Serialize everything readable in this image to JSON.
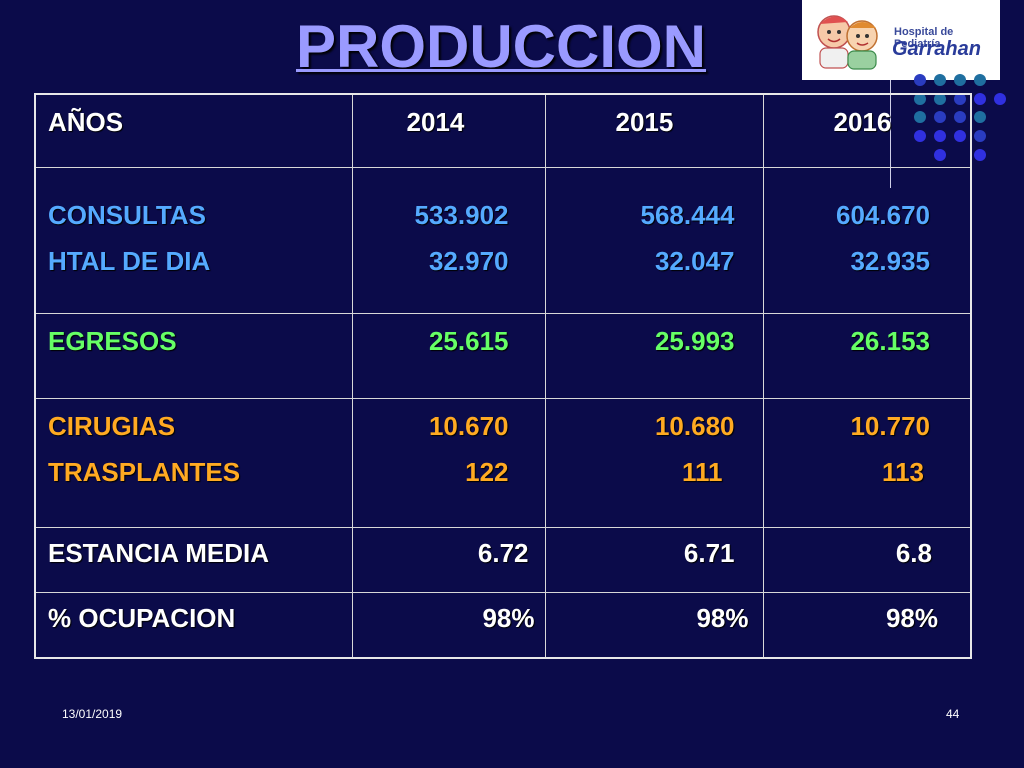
{
  "title": "PRODUCCION",
  "logo": {
    "line1": "Hospital de Pediatría",
    "line2": "Garrahan"
  },
  "table": {
    "header": {
      "label": "AÑOS",
      "years": [
        "2014",
        "2015",
        "2016"
      ]
    },
    "consultas": {
      "label": "CONSULTAS",
      "values": [
        "533.902",
        "568.444",
        "604.670"
      ]
    },
    "htal_dia": {
      "label": "HTAL DE DIA",
      "values": [
        "32.970",
        "32.047",
        "32.935"
      ]
    },
    "egresos": {
      "label": "EGRESOS",
      "values": [
        "25.615",
        "25.993",
        "26.153"
      ]
    },
    "cirugias": {
      "label": "CIRUGIAS",
      "values": [
        "10.670",
        "10.680",
        "10.770"
      ]
    },
    "trasplantes": {
      "label": "TRASPLANTES",
      "values": [
        "122",
        "111",
        "113"
      ]
    },
    "estancia": {
      "label": "ESTANCIA MEDIA",
      "values": [
        "6.72",
        "6.71",
        "6.8"
      ]
    },
    "ocupacion": {
      "label": "% OCUPACION",
      "values": [
        "98%",
        "98%",
        "98%"
      ]
    }
  },
  "footer": {
    "date": "13/01/2019",
    "page": "44"
  },
  "colors": {
    "background": "#0b0b4a",
    "title": "#9a9aff",
    "consultas": "#55aaff",
    "egresos": "#66ff66",
    "cirugias": "#ffaa22"
  }
}
